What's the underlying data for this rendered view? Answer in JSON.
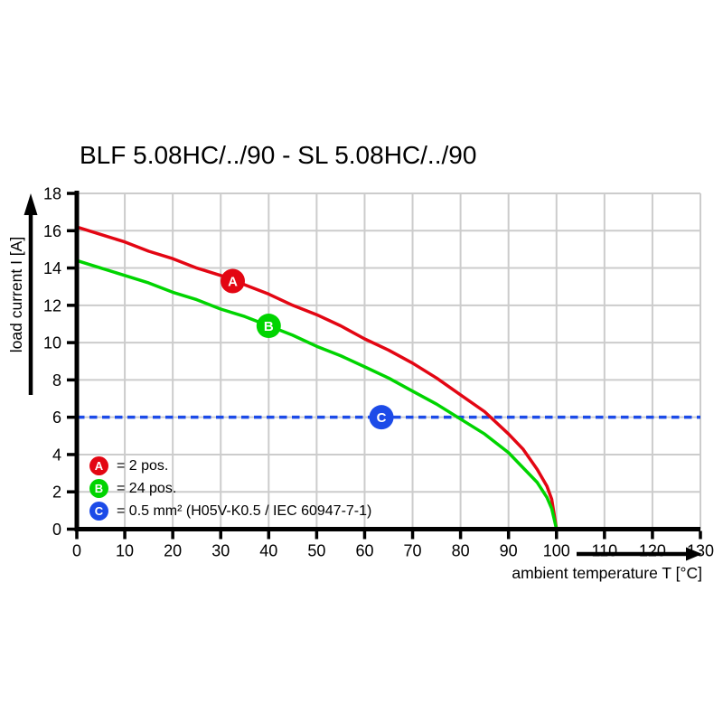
{
  "chart_data": {
    "type": "line",
    "title": "BLF 5.08HC/../90 - SL 5.08HC/../90",
    "xlabel": "ambient temperature T [°C]",
    "ylabel": "load current I [A]",
    "xlim": [
      0,
      130
    ],
    "ylim": [
      0,
      18
    ],
    "x_ticks": [
      0,
      10,
      20,
      30,
      40,
      50,
      60,
      70,
      80,
      90,
      100,
      110,
      120,
      130
    ],
    "y_ticks": [
      0,
      2,
      4,
      6,
      8,
      10,
      12,
      14,
      16,
      18
    ],
    "grid": true,
    "grid_color": "#cccccc",
    "axis_color": "#000000",
    "series": [
      {
        "name": "A",
        "label": "2 pos.",
        "color": "#e30613",
        "points": [
          [
            0,
            16.2
          ],
          [
            5,
            15.8
          ],
          [
            10,
            15.4
          ],
          [
            15,
            14.9
          ],
          [
            20,
            14.5
          ],
          [
            25,
            14.0
          ],
          [
            30,
            13.6
          ],
          [
            35,
            13.1
          ],
          [
            40,
            12.6
          ],
          [
            45,
            12.0
          ],
          [
            50,
            11.5
          ],
          [
            55,
            10.9
          ],
          [
            60,
            10.2
          ],
          [
            65,
            9.6
          ],
          [
            70,
            8.9
          ],
          [
            75,
            8.1
          ],
          [
            80,
            7.2
          ],
          [
            85,
            6.3
          ],
          [
            90,
            5.1
          ],
          [
            93,
            4.3
          ],
          [
            96,
            3.2
          ],
          [
            98,
            2.3
          ],
          [
            99,
            1.6
          ],
          [
            100,
            0
          ]
        ]
      },
      {
        "name": "B",
        "label": "24 pos.",
        "color": "#00d400",
        "points": [
          [
            0,
            14.4
          ],
          [
            5,
            14.0
          ],
          [
            10,
            13.6
          ],
          [
            15,
            13.2
          ],
          [
            20,
            12.7
          ],
          [
            25,
            12.3
          ],
          [
            30,
            11.8
          ],
          [
            35,
            11.4
          ],
          [
            40,
            10.9
          ],
          [
            45,
            10.4
          ],
          [
            50,
            9.8
          ],
          [
            55,
            9.3
          ],
          [
            60,
            8.7
          ],
          [
            65,
            8.1
          ],
          [
            70,
            7.4
          ],
          [
            75,
            6.7
          ],
          [
            80,
            5.9
          ],
          [
            85,
            5.1
          ],
          [
            90,
            4.1
          ],
          [
            93,
            3.3
          ],
          [
            96,
            2.5
          ],
          [
            98,
            1.7
          ],
          [
            99,
            1.1
          ],
          [
            100,
            0
          ]
        ]
      }
    ],
    "reference_line": {
      "name": "C",
      "value": 6,
      "color": "#1c4be8",
      "style": "dashed",
      "label": "0.5 mm² (H05V-K0.5 / IEC 60947-7-1)"
    },
    "markers": [
      {
        "letter": "A",
        "x": 32.5,
        "y": 13.3,
        "color": "#e30613"
      },
      {
        "letter": "B",
        "x": 40,
        "y": 10.9,
        "color": "#00d400"
      },
      {
        "letter": "C",
        "x": 63.5,
        "y": 6,
        "color": "#1c4be8"
      }
    ],
    "legend": [
      {
        "letter": "A",
        "color": "#e30613",
        "text": "= 2 pos."
      },
      {
        "letter": "B",
        "color": "#00d400",
        "text": "= 24 pos."
      },
      {
        "letter": "C",
        "color": "#1c4be8",
        "text": "= 0.5 mm² (H05V-K0.5 / IEC 60947-7-1)"
      }
    ],
    "legend_position": "lower-left"
  }
}
